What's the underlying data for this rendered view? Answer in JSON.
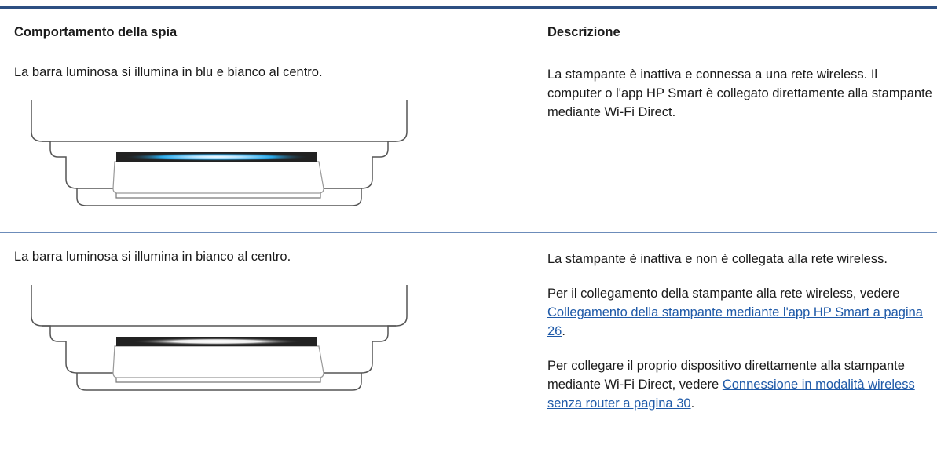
{
  "table": {
    "headers": [
      "Comportamento della spia",
      "Descrizione"
    ],
    "rows": [
      {
        "behavior": "La barra luminosa si illumina in blu e bianco al centro.",
        "description": [
          {
            "text": "La stampante è inattiva e connessa a una rete wireless. Il computer o l'app HP Smart è collegato direttamente alla stampante mediante Wi-Fi Direct."
          }
        ]
      },
      {
        "behavior": "La barra luminosa si illumina in bianco al centro.",
        "description": [
          {
            "text": "La stampante è inattiva e non è collegata alla rete wireless."
          },
          {
            "text": "Per il collegamento della stampante alla rete wireless, vedere ",
            "link": "Collegamento della stampante mediante l'app HP Smart a pagina 26",
            "after": "."
          },
          {
            "text": "Per collegare il proprio dispositivo direttamente alla stampante mediante Wi-Fi Direct, vedere ",
            "link": "Connessione in modalità wireless senza router a pagina 30",
            "after": "."
          }
        ]
      }
    ]
  }
}
